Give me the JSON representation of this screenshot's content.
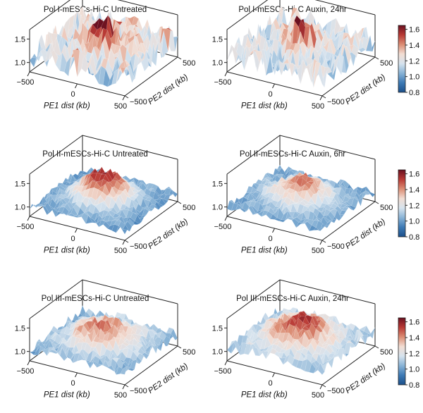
{
  "chart_data": [
    {
      "type": "surface3d",
      "title": "Pol I-mESCs-Hi-C Untreated",
      "xlabel": "PE1 dist (kb)",
      "ylabel": "PE2 dist (kb)",
      "x_ticks": [
        "−500",
        "0",
        "500"
      ],
      "y_ticks": [
        "−500",
        "500"
      ],
      "z_ticks": [
        "1.0",
        "1.5"
      ],
      "xlim": [
        -500,
        500
      ],
      "ylim": [
        -500,
        500
      ],
      "zlim": [
        0.8,
        1.7
      ],
      "surface": {
        "base": 1.2,
        "noise": 0.3,
        "peak_height": 0.45,
        "peak_width": 1.5,
        "seed": 11
      }
    },
    {
      "type": "surface3d",
      "title": "Pol I-mESCs-Hi-C Auxin, 24hr",
      "xlabel": "PE1 dist (kb)",
      "ylabel": "PE2 dist (kb)",
      "x_ticks": [
        "−500",
        "0",
        "500"
      ],
      "y_ticks": [
        "−500",
        "500"
      ],
      "z_ticks": [
        "1.0",
        "1.5"
      ],
      "xlim": [
        -500,
        500
      ],
      "ylim": [
        -500,
        500
      ],
      "zlim": [
        0.8,
        1.7
      ],
      "surface": {
        "base": 1.18,
        "noise": 0.28,
        "peak_height": 0.4,
        "peak_width": 1.5,
        "seed": 23
      }
    },
    {
      "type": "surface3d",
      "title": "Pol II-mESCs-Hi-C Untreated",
      "xlabel": "PE1 dist (kb)",
      "ylabel": "PE2 dist (kb)",
      "x_ticks": [
        "−500",
        "0",
        "500"
      ],
      "y_ticks": [
        "−500",
        "500"
      ],
      "z_ticks": [
        "1.0",
        "1.5"
      ],
      "xlim": [
        -500,
        500
      ],
      "ylim": [
        -500,
        500
      ],
      "zlim": [
        0.8,
        1.7
      ],
      "surface": {
        "base": 1.0,
        "noise": 0.09,
        "peak_height": 0.6,
        "peak_width": 2.6,
        "seed": 37
      }
    },
    {
      "type": "surface3d",
      "title": "Pol II-mESCs-Hi-C Auxin, 6hr",
      "xlabel": "PE1 dist (kb)",
      "ylabel": "PE2 dist (kb)",
      "x_ticks": [
        "−500",
        "0",
        "500"
      ],
      "y_ticks": [
        "−500",
        "500"
      ],
      "z_ticks": [
        "1.0",
        "1.5"
      ],
      "xlim": [
        -500,
        500
      ],
      "ylim": [
        -500,
        500
      ],
      "zlim": [
        0.8,
        1.7
      ],
      "surface": {
        "base": 1.0,
        "noise": 0.09,
        "peak_height": 0.45,
        "peak_width": 3.0,
        "seed": 41
      }
    },
    {
      "type": "surface3d",
      "title": "Pol III-mESCs-Hi-C Untreated",
      "xlabel": "PE1 dist (kb)",
      "ylabel": "PE2 dist (kb)",
      "x_ticks": [
        "−500",
        "0",
        "500"
      ],
      "y_ticks": [
        "−500",
        "500"
      ],
      "z_ticks": [
        "1.0",
        "1.5"
      ],
      "xlim": [
        -500,
        500
      ],
      "ylim": [
        -500,
        500
      ],
      "zlim": [
        0.8,
        1.7
      ],
      "surface": {
        "base": 1.05,
        "noise": 0.12,
        "peak_height": 0.4,
        "peak_width": 3.2,
        "seed": 53
      }
    },
    {
      "type": "surface3d",
      "title": "Pol III-mESCs-Hi-C Auxin, 24hr",
      "xlabel": "PE1 dist (kb)",
      "ylabel": "PE2 dist (kb)",
      "x_ticks": [
        "−500",
        "0",
        "500"
      ],
      "y_ticks": [
        "−500",
        "500"
      ],
      "z_ticks": [
        "1.0",
        "1.5"
      ],
      "xlim": [
        -500,
        500
      ],
      "ylim": [
        -500,
        500
      ],
      "zlim": [
        0.8,
        1.7
      ],
      "surface": {
        "base": 1.08,
        "noise": 0.12,
        "peak_height": 0.45,
        "peak_width": 3.4,
        "seed": 67
      }
    }
  ],
  "colorbar": {
    "range": [
      0.8,
      1.65
    ],
    "ticks": [
      "0.8",
      "1.0",
      "1.2",
      "1.4",
      "1.6"
    ],
    "tick_values": [
      0.8,
      1.0,
      1.2,
      1.4,
      1.6
    ],
    "colormap": [
      "#1b4f8a",
      "#3d7ab5",
      "#89b3d6",
      "#d6e3ee",
      "#f2ddd3",
      "#dc8e75",
      "#b93a35",
      "#6a1020"
    ]
  }
}
